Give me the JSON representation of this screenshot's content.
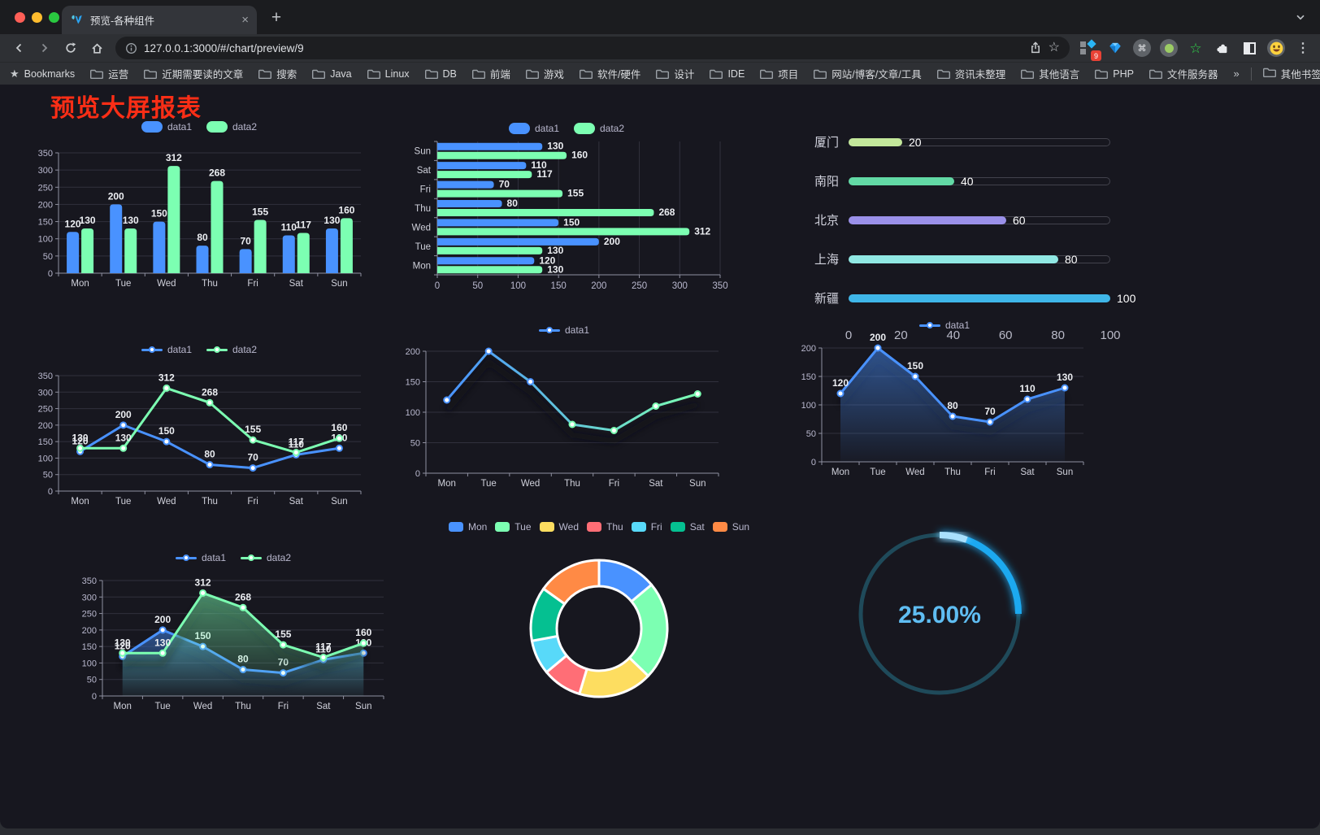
{
  "browser": {
    "tab": {
      "title": "预览-各种组件"
    },
    "url": "127.0.0.1:3000/#/chart/preview/9",
    "bookmarks_label": "Bookmarks",
    "bookmarks": [
      "运营",
      "近期需要读的文章",
      "搜索",
      "Java",
      "Linux",
      "DB",
      "前端",
      "游戏",
      "软件/硬件",
      "设计",
      "IDE",
      "项目",
      "网站/博客/文章/工具",
      "资讯未整理",
      "其他语言",
      "PHP",
      "文件服务器"
    ],
    "bookmarks_overflow": "»",
    "other_bookmarks": "其他书签",
    "extension_badge": "9",
    "icons": {
      "new_tab": "+",
      "close_tab": "×",
      "command": "⌘",
      "star_outline": "☆",
      "bookmarks_star": "★",
      "green_star": "☆",
      "menu_dots": "⋮"
    }
  },
  "page": {
    "title": "预览大屏报表",
    "title_color": "#fa2e16",
    "background": "#17171f"
  },
  "palette": {
    "blue": "#4992ff",
    "green": "#7cffb2",
    "yellow": "#fddd60",
    "red": "#ff6e76",
    "sky": "#58d9f9",
    "teal": "#05c091",
    "orange": "#ff8a45"
  },
  "chart_data": [
    {
      "id": "grouped-column",
      "type": "bar",
      "categories": [
        "Mon",
        "Tue",
        "Wed",
        "Thu",
        "Fri",
        "Sat",
        "Sun"
      ],
      "series": [
        {
          "name": "data1",
          "color": "#4992ff",
          "values": [
            120,
            200,
            150,
            80,
            70,
            110,
            130
          ]
        },
        {
          "name": "data2",
          "color": "#7cffb2",
          "values": [
            130,
            130,
            312,
            268,
            155,
            117,
            160
          ]
        }
      ],
      "ylim": [
        0,
        350
      ],
      "ytick": 50,
      "legend_position": "top",
      "grid": true
    },
    {
      "id": "grouped-bar-horizontal",
      "type": "bar",
      "orientation": "horizontal",
      "categories_top_to_bottom": [
        "Sun",
        "Sat",
        "Fri",
        "Thu",
        "Wed",
        "Tue",
        "Mon"
      ],
      "series": [
        {
          "name": "data1",
          "color": "#4992ff",
          "values": [
            130,
            110,
            70,
            80,
            150,
            200,
            120
          ]
        },
        {
          "name": "data2",
          "color": "#7cffb2",
          "values": [
            160,
            117,
            155,
            268,
            312,
            130,
            130
          ]
        }
      ],
      "xlim": [
        0,
        350
      ],
      "xtick": 50,
      "legend_position": "top",
      "grid": true
    },
    {
      "id": "progress-bars",
      "type": "bar",
      "orientation": "horizontal",
      "items": [
        {
          "label": "厦门",
          "value": 20,
          "color": "#c3e79b"
        },
        {
          "label": "南阳",
          "value": 40,
          "color": "#62d9a5"
        },
        {
          "label": "北京",
          "value": 60,
          "color": "#9a90e9"
        },
        {
          "label": "上海",
          "value": 80,
          "color": "#90e8e3"
        },
        {
          "label": "新疆",
          "value": 100,
          "color": "#3fb6e8"
        }
      ],
      "xlim": [
        0,
        100
      ],
      "ticks": [
        0,
        20,
        40,
        60,
        80,
        100
      ]
    },
    {
      "id": "multi-line",
      "type": "line",
      "categories": [
        "Mon",
        "Tue",
        "Wed",
        "Thu",
        "Fri",
        "Sat",
        "Sun"
      ],
      "series": [
        {
          "name": "data1",
          "color": "#4992ff",
          "values": [
            120,
            200,
            150,
            80,
            70,
            110,
            130
          ]
        },
        {
          "name": "data2",
          "color": "#7cffb2",
          "values": [
            130,
            130,
            312,
            268,
            155,
            117,
            160
          ]
        }
      ],
      "ylim": [
        0,
        350
      ],
      "ytick": 50,
      "value_labels": true
    },
    {
      "id": "gradient-line",
      "type": "line",
      "categories": [
        "Mon",
        "Tue",
        "Wed",
        "Thu",
        "Fri",
        "Sat",
        "Sun"
      ],
      "series": [
        {
          "name": "data1",
          "gradient": [
            "#4992ff",
            "#7cffb2"
          ],
          "values": [
            120,
            200,
            150,
            80,
            70,
            110,
            130
          ]
        }
      ],
      "ylim": [
        0,
        200
      ],
      "ytick": 50,
      "value_labels": false
    },
    {
      "id": "area-line",
      "type": "area",
      "categories": [
        "Mon",
        "Tue",
        "Wed",
        "Thu",
        "Fri",
        "Sat",
        "Sun"
      ],
      "series": [
        {
          "name": "data1",
          "color": "#4992ff",
          "values": [
            120,
            200,
            150,
            80,
            70,
            110,
            130
          ]
        }
      ],
      "ylim": [
        0,
        200
      ],
      "ytick": 50,
      "value_labels": true
    },
    {
      "id": "two-area-lines",
      "type": "area",
      "categories": [
        "Mon",
        "Tue",
        "Wed",
        "Thu",
        "Fri",
        "Sat",
        "Sun"
      ],
      "series": [
        {
          "name": "data1",
          "color": "#4992ff",
          "values": [
            120,
            200,
            150,
            80,
            70,
            110,
            130
          ]
        },
        {
          "name": "data2",
          "color": "#7cffb2",
          "values": [
            130,
            130,
            312,
            268,
            155,
            117,
            160
          ]
        }
      ],
      "ylim": [
        0,
        350
      ],
      "ytick": 50,
      "value_labels": true
    },
    {
      "id": "doughnut",
      "type": "pie",
      "categories": [
        "Mon",
        "Tue",
        "Wed",
        "Thu",
        "Fri",
        "Sat",
        "Sun"
      ],
      "values": [
        120,
        200,
        150,
        80,
        70,
        110,
        130
      ],
      "colors": [
        "#4992ff",
        "#7cffb2",
        "#fddd60",
        "#ff6e76",
        "#58d9f9",
        "#05c091",
        "#ff8a45"
      ],
      "inner_radius_ratio": 0.62,
      "legend_position": "top"
    },
    {
      "id": "progress-circle",
      "type": "gauge",
      "value": 25,
      "label": "25.00%",
      "color": "#1ba9f0",
      "track_color": "#1f4a5a",
      "text_color": "#5fbdf2"
    }
  ]
}
